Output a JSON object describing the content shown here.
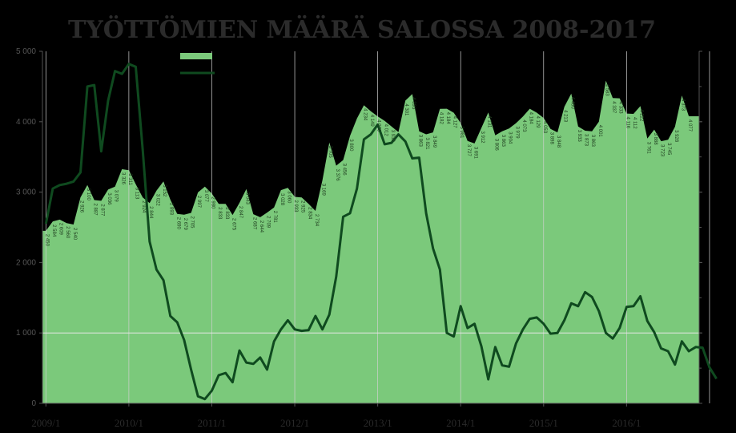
{
  "chart_data": {
    "type": "area",
    "title": "TYÖTTÖMIEN MÄÄRÄ SALOSSA 2008-2017",
    "xlabel": "",
    "ylabel": "",
    "ylim": [
      0,
      5000
    ],
    "y_ticks": [
      "0",
      "1 000",
      "2 000",
      "3 000",
      "4 000",
      "5 000"
    ],
    "x_ticks": [
      "2009/1",
      "2010/1",
      "2011/1",
      "2012/1",
      "2013/1",
      "2014/1",
      "2015/1",
      "2016/1"
    ],
    "grid": false,
    "legend": "top-center",
    "colors": {
      "area": "#7bc97b",
      "line": "#0f4a1f",
      "background": "#000000"
    },
    "series": [
      {
        "type": "area",
        "values": [
          2450,
          2584,
          2609,
          2560,
          2540,
          2926,
          3100,
          2887,
          2877,
          3036,
          3079,
          3326,
          3311,
          3113,
          2924,
          2844,
          3022,
          3152,
          2893,
          2690,
          2679,
          2705,
          2997,
          3077,
          2980,
          2833,
          2833,
          2675,
          2847,
          3043,
          2687,
          2644,
          2709,
          2781,
          3028,
          3060,
          2933,
          2925,
          2834,
          2734,
          3169,
          3705,
          3376,
          3456,
          3800,
          4045,
          4234,
          4149,
          4076,
          4012,
          3932,
          3853,
          4301,
          4393,
          3863,
          3821,
          3849,
          4182,
          4184,
          4127,
          3981,
          3727,
          3691,
          3912,
          4131,
          3806,
          3863,
          3904,
          3979,
          4073,
          4184,
          4129,
          4053,
          3898,
          3848,
          4213,
          4400,
          3933,
          3873,
          3863,
          4001,
          4583,
          4337,
          4333,
          4116,
          4112,
          4222,
          3761,
          3888,
          3723,
          3745,
          3928,
          4373,
          4077,
          4077
        ]
      },
      {
        "type": "line",
        "values": [
          2550,
          3050,
          3100,
          3120,
          3150,
          3280,
          4500,
          4520,
          3580,
          4300,
          4720,
          4680,
          4820,
          4780,
          3600,
          2300,
          1900,
          1750,
          1240,
          1150,
          900,
          480,
          100,
          60,
          180,
          400,
          430,
          300,
          750,
          580,
          560,
          650,
          480,
          880,
          1050,
          1180,
          1050,
          1030,
          1040,
          1240,
          1050,
          1260,
          1800,
          2650,
          2700,
          3050,
          3750,
          3820,
          3960,
          3680,
          3700,
          3820,
          3720,
          3480,
          3490,
          2700,
          2200,
          1900,
          1000,
          950,
          1380,
          1070,
          1130,
          810,
          340,
          800,
          540,
          520,
          850,
          1050,
          1200,
          1220,
          1130,
          990,
          1000,
          1180,
          1420,
          1380,
          1580,
          1510,
          1310,
          1000,
          920,
          1070,
          1370,
          1380,
          1520,
          1170,
          1010,
          780,
          740,
          550,
          880,
          740,
          800,
          790,
          510,
          350
        ]
      }
    ],
    "data_labels": [
      {
        "i": 0,
        "text": "2 450"
      },
      {
        "i": 1,
        "text": "2 584"
      },
      {
        "i": 2,
        "text": "2 609"
      },
      {
        "i": 3,
        "text": "2 560"
      },
      {
        "i": 4,
        "text": "2 540"
      },
      {
        "i": 5,
        "text": "2 926"
      },
      {
        "i": 6,
        "text": "3 100"
      },
      {
        "i": 7,
        "text": "2 887"
      },
      {
        "i": 8,
        "text": "2 877"
      },
      {
        "i": 9,
        "text": "3 036"
      },
      {
        "i": 10,
        "text": "3 079"
      },
      {
        "i": 11,
        "text": "3 326"
      },
      {
        "i": 12,
        "text": "3 311"
      },
      {
        "i": 13,
        "text": "3 113"
      },
      {
        "i": 14,
        "text": "2 924"
      },
      {
        "i": 15,
        "text": "2 844"
      },
      {
        "i": 16,
        "text": "3 022"
      },
      {
        "i": 17,
        "text": "3 152"
      },
      {
        "i": 18,
        "text": "2 893"
      },
      {
        "i": 19,
        "text": "2 690"
      },
      {
        "i": 20,
        "text": "2 679"
      },
      {
        "i": 21,
        "text": "2 705"
      },
      {
        "i": 22,
        "text": "2 997"
      },
      {
        "i": 23,
        "text": "3 077"
      },
      {
        "i": 24,
        "text": "2 980"
      },
      {
        "i": 25,
        "text": "2 833"
      },
      {
        "i": 26,
        "text": "2 833"
      },
      {
        "i": 27,
        "text": "2 675"
      },
      {
        "i": 28,
        "text": "2 847"
      },
      {
        "i": 29,
        "text": "3 043"
      },
      {
        "i": 30,
        "text": "2 687"
      },
      {
        "i": 31,
        "text": "2 644"
      },
      {
        "i": 32,
        "text": "2 709"
      },
      {
        "i": 33,
        "text": "2 781"
      },
      {
        "i": 34,
        "text": "3 028"
      },
      {
        "i": 35,
        "text": "3 060"
      },
      {
        "i": 36,
        "text": "2 933"
      },
      {
        "i": 37,
        "text": "2 925"
      },
      {
        "i": 38,
        "text": "2 834"
      },
      {
        "i": 39,
        "text": "2 734"
      },
      {
        "i": 40,
        "text": "3 169"
      },
      {
        "i": 41,
        "text": "3 705"
      },
      {
        "i": 42,
        "text": "3 376"
      },
      {
        "i": 43,
        "text": "3 456"
      },
      {
        "i": 44,
        "text": "3 800"
      },
      {
        "i": 46,
        "text": "4 234"
      },
      {
        "i": 47,
        "text": "4 149"
      },
      {
        "i": 48,
        "text": "4 076"
      },
      {
        "i": 49,
        "text": "4 012"
      },
      {
        "i": 50,
        "text": "3 932"
      },
      {
        "i": 52,
        "text": "4 301"
      },
      {
        "i": 53,
        "text": "4 393"
      },
      {
        "i": 54,
        "text": "3 863"
      },
      {
        "i": 55,
        "text": "3 821"
      },
      {
        "i": 56,
        "text": "3 849"
      },
      {
        "i": 57,
        "text": "4 182"
      },
      {
        "i": 58,
        "text": "4 184"
      },
      {
        "i": 59,
        "text": "4 127"
      },
      {
        "i": 60,
        "text": "3 981"
      },
      {
        "i": 61,
        "text": "3 727"
      },
      {
        "i": 62,
        "text": "3 691"
      },
      {
        "i": 63,
        "text": "3 912"
      },
      {
        "i": 64,
        "text": "4 131"
      },
      {
        "i": 65,
        "text": "3 806"
      },
      {
        "i": 66,
        "text": "3 863"
      },
      {
        "i": 67,
        "text": "3 904"
      },
      {
        "i": 68,
        "text": "3 979"
      },
      {
        "i": 69,
        "text": "4 073"
      },
      {
        "i": 70,
        "text": "4 184"
      },
      {
        "i": 71,
        "text": "4 129"
      },
      {
        "i": 72,
        "text": "4 053"
      },
      {
        "i": 73,
        "text": "3 898"
      },
      {
        "i": 74,
        "text": "3 848"
      },
      {
        "i": 75,
        "text": "4 213"
      },
      {
        "i": 76,
        "text": "4 400"
      },
      {
        "i": 77,
        "text": "3 933"
      },
      {
        "i": 78,
        "text": "3 873"
      },
      {
        "i": 79,
        "text": "3 863"
      },
      {
        "i": 80,
        "text": "4 001"
      },
      {
        "i": 81,
        "text": "4 583"
      },
      {
        "i": 82,
        "text": "4 337"
      },
      {
        "i": 83,
        "text": "4 333"
      },
      {
        "i": 84,
        "text": "4 116"
      },
      {
        "i": 85,
        "text": "4 112"
      },
      {
        "i": 86,
        "text": "4 222"
      },
      {
        "i": 87,
        "text": "3 761"
      },
      {
        "i": 88,
        "text": "3 888"
      },
      {
        "i": 89,
        "text": "3 723"
      },
      {
        "i": 90,
        "text": "3 745"
      },
      {
        "i": 91,
        "text": "3 928"
      },
      {
        "i": 92,
        "text": "4 373"
      },
      {
        "i": 93,
        "text": "4 077"
      }
    ]
  }
}
